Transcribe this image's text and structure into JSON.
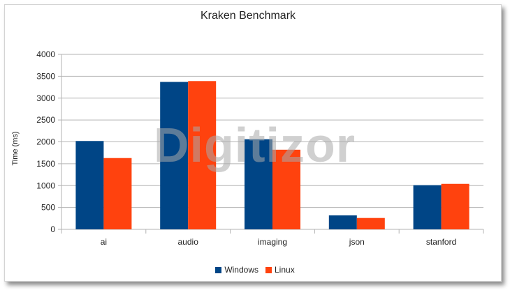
{
  "chart_data": {
    "type": "bar",
    "title": "Kraken Benchmark",
    "xlabel": "",
    "ylabel": "Time (ms)",
    "ylim": [
      0,
      4000
    ],
    "yticks": [
      0,
      500,
      1000,
      1500,
      2000,
      2500,
      3000,
      3500,
      4000
    ],
    "categories": [
      "ai",
      "audio",
      "imaging",
      "json",
      "stanford"
    ],
    "series": [
      {
        "name": "Windows",
        "color": "#004586",
        "values": [
          2020,
          3370,
          2060,
          320,
          1010
        ]
      },
      {
        "name": "Linux",
        "color": "#ff420e",
        "values": [
          1630,
          3390,
          1820,
          260,
          1040
        ]
      }
    ],
    "grid": true,
    "legend_position": "bottom"
  },
  "watermark": "Digitizor"
}
